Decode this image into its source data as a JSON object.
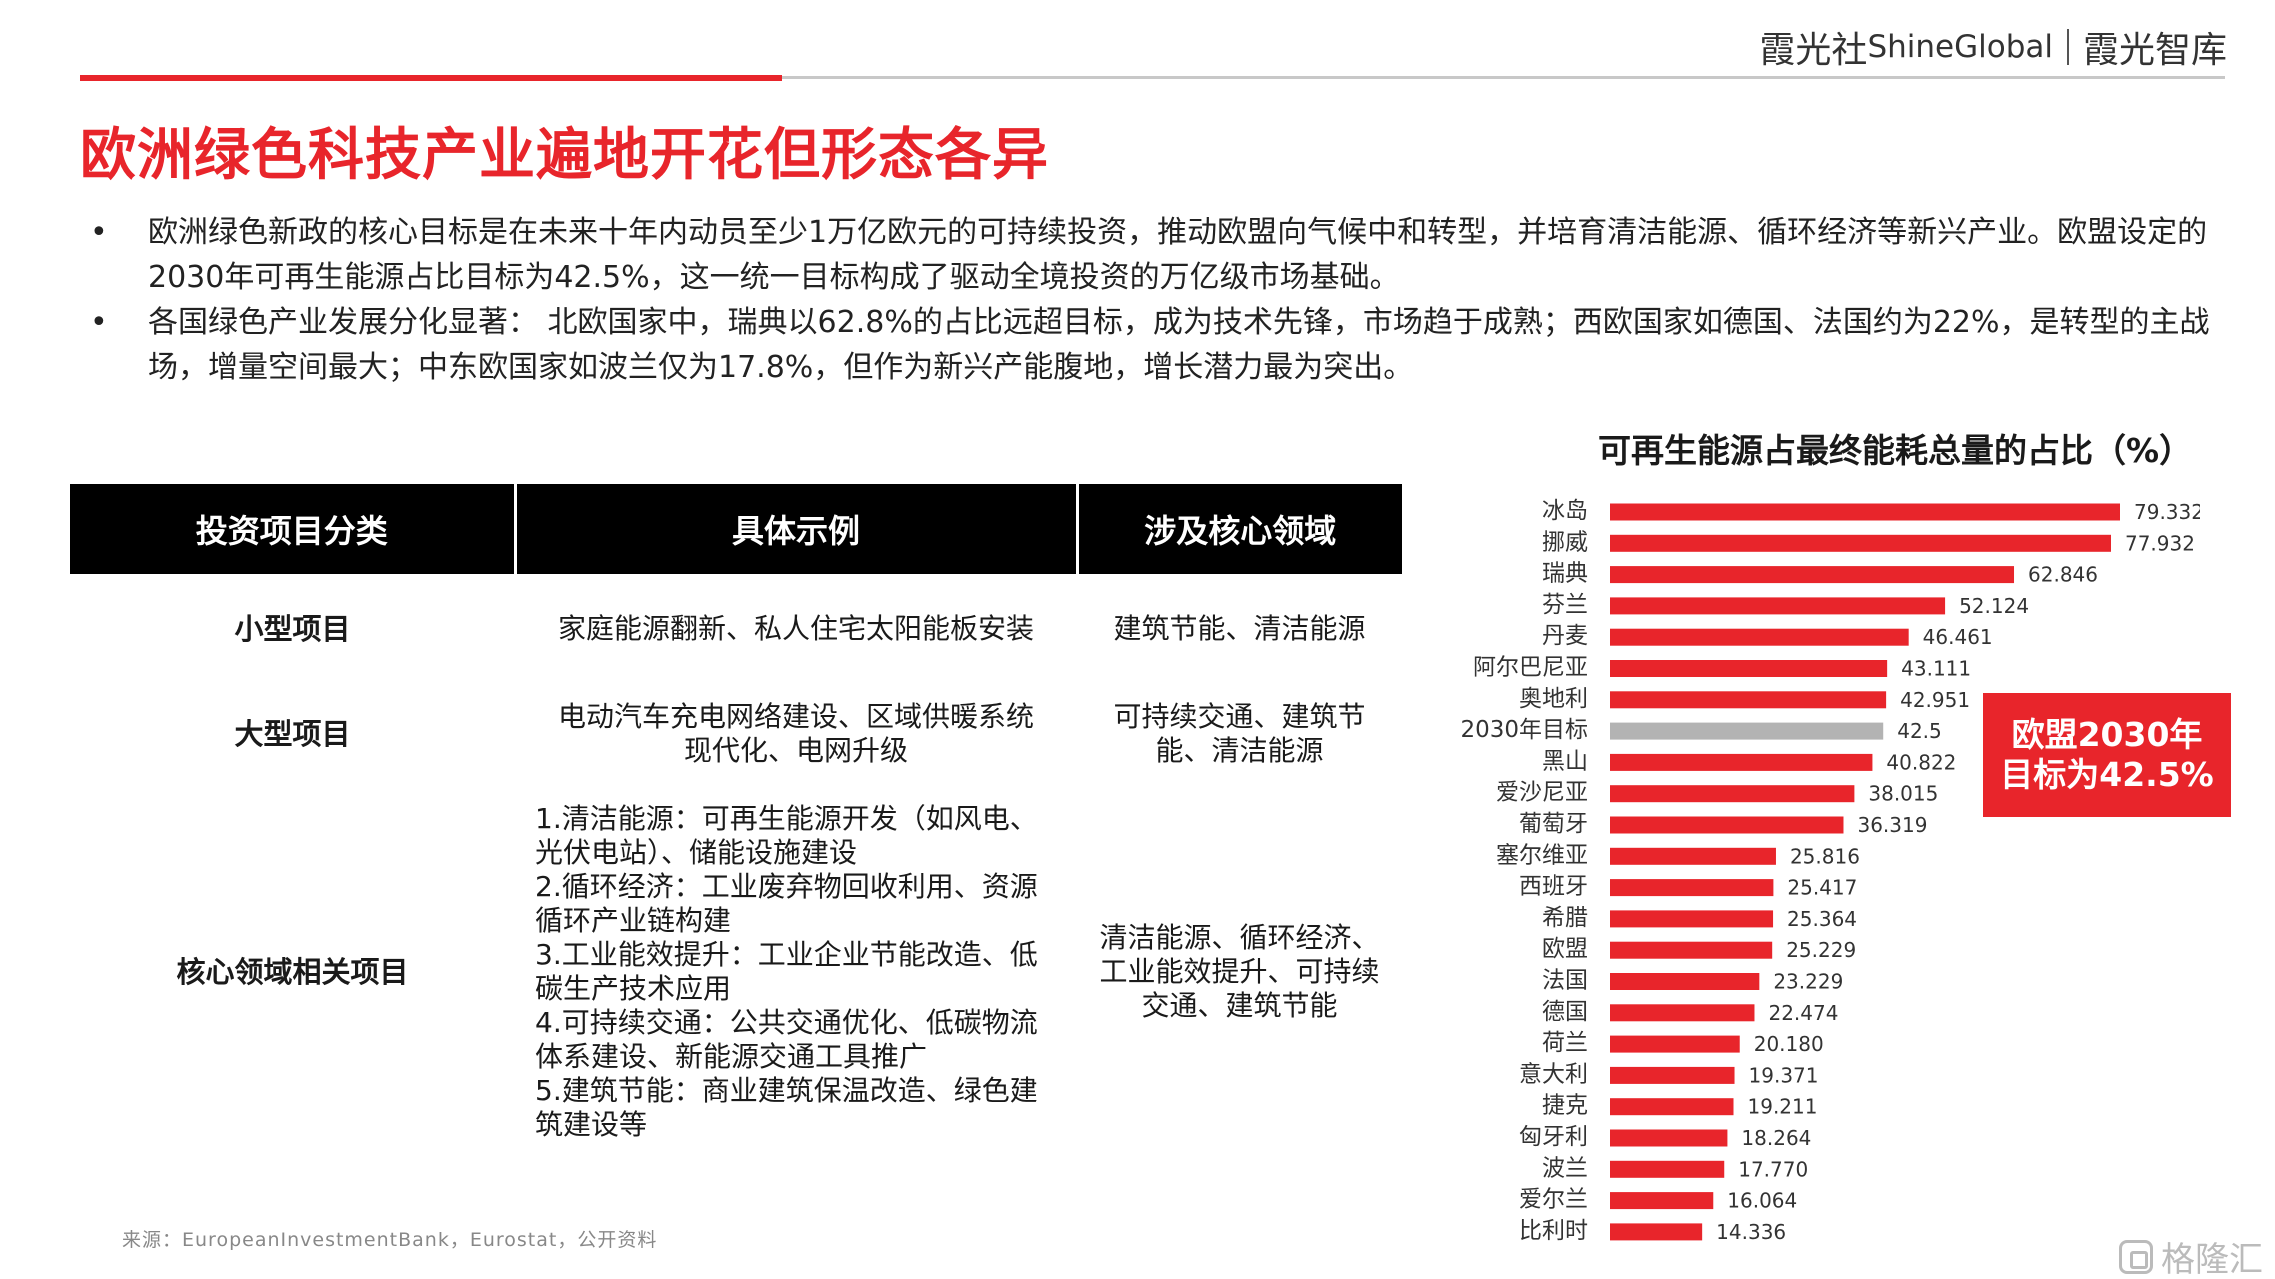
{
  "brand": {
    "left": "霞光社",
    "left_latin": "ShineGlobal",
    "right": "霞光智库"
  },
  "title": "欧洲绿色科技产业遍地开花但形态各异",
  "bullets": [
    {
      "text": "欧洲绿色新政的核心目标是在未来十年内动员至少1万亿欧元的可持续投资，推动欧盟向气候中和转型，并培育清洁能源、循环经济等新兴产业。欧盟设定的2030年可再生能源占比目标为42.5%，这一统一目标构成了驱动全境投资的万亿级市场基础。"
    },
    {
      "text": "各国绿色产业发展分化显著： 北欧国家中，瑞典以62.8%的占比远超目标，成为技术先锋，市场趋于成熟；西欧国家如德国、法国约为22%，是转型的主战场，增量空间最大；中东欧国家如波兰仅为17.8%，但作为新兴产能腹地，增长潜力最为突出。"
    }
  ],
  "table": {
    "headers": [
      "投资项目分类",
      "具体示例",
      "涉及核心领域"
    ],
    "rows": [
      {
        "category": "小型项目",
        "example": "家庭能源翻新、私人住宅太阳能板安装",
        "domain": "建筑节能、清洁能源"
      },
      {
        "category": "大型项目",
        "example": "电动汽车充电网络建设、区域供暖系统现代化、电网升级",
        "domain": "可持续交通、建筑节能、清洁能源"
      },
      {
        "category": "核心领域相关项目",
        "example": "1.清洁能源：可再生能源开发（如风电、光伏电站）、储能设施建设\n2.循环经济：工业废弃物回收利用、资源循环产业链构建\n3.工业能效提升：工业企业节能改造、低碳生产技术应用\n4.可持续交通：公共交通优化、低碳物流体系建设、新能源交通工具推广\n5.建筑节能：商业建筑保温改造、绿色建筑建设等",
        "domain": "清洁能源、循环经济、工业能效提升、可持续交通、建筑节能"
      }
    ]
  },
  "source": "来源：EuropeanInvestmentBank，Eurostat，公开资料",
  "chart_data": {
    "type": "bar",
    "orientation": "horizontal",
    "title": "可再生能源占最终能耗总量的占比（%）",
    "categories": [
      "冰岛",
      "挪威",
      "瑞典",
      "芬兰",
      "丹麦",
      "阿尔巴尼亚",
      "奥地利",
      "2030年目标",
      "黑山",
      "爱沙尼亚",
      "葡萄牙",
      "塞尔维亚",
      "西班牙",
      "希腊",
      "欧盟",
      "法国",
      "德国",
      "荷兰",
      "意大利",
      "捷克",
      "匈牙利",
      "波兰",
      "爱尔兰",
      "比利时"
    ],
    "value_labels": [
      "79.332",
      "77.932",
      "62.846",
      "52.124",
      "46.461",
      "43.111",
      "42.951",
      "42.5",
      "40.822",
      "38.015",
      "36.319",
      "25.816",
      "25.417",
      "25.364",
      "25.229",
      "23.229",
      "22.474",
      "20.180",
      "19.371",
      "19.211",
      "18.264",
      "17.770",
      "16.064",
      "14.336"
    ],
    "values": [
      79.332,
      77.932,
      62.846,
      52.124,
      46.461,
      43.111,
      42.951,
      42.5,
      40.822,
      38.015,
      36.319,
      25.816,
      25.417,
      25.364,
      25.229,
      23.229,
      22.474,
      20.18,
      19.371,
      19.211,
      18.264,
      17.77,
      16.064,
      14.336
    ],
    "highlight_category": "2030年目标",
    "colors": {
      "bar": "#e8252b",
      "highlight": "#b3b3b3"
    },
    "callout": [
      "欧盟2030年",
      "目标为42.5%"
    ]
  },
  "watermark": "格隆汇"
}
